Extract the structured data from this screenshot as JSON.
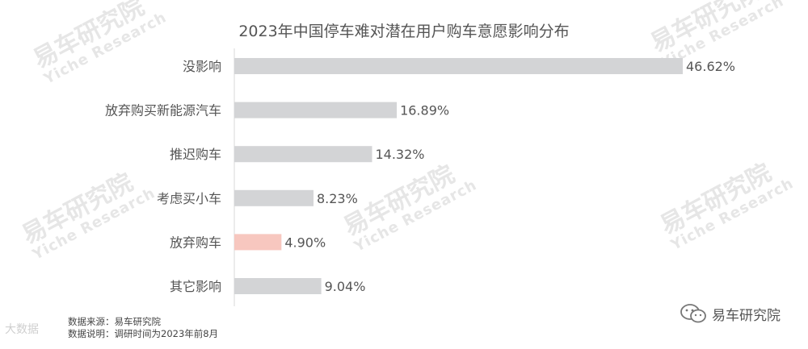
{
  "watermark": {
    "cn": "易车研究院",
    "en": "Yiche Research"
  },
  "chart_data": {
    "type": "bar",
    "orientation": "horizontal",
    "title": "2023年中国停车难对潜在用户购车意愿影响分布",
    "categories": [
      "没影响",
      "放弃购买新能源汽车",
      "推迟购车",
      "考虑买小车",
      "放弃购车",
      "其它影响"
    ],
    "values": [
      46.62,
      16.89,
      14.32,
      8.23,
      4.9,
      9.04
    ],
    "value_labels": [
      "46.62%",
      "16.89%",
      "14.32%",
      "8.23%",
      "4.90%",
      "9.04%"
    ],
    "highlight_index": 4,
    "colors": {
      "bar": "#d3d4d6",
      "highlight": "#f7c7bf",
      "axis": "#d9d9d9",
      "label": "#555555"
    },
    "xlim": [
      0,
      46.62
    ],
    "grid": false,
    "legend": false
  },
  "footer": {
    "source": "数据来源：易车研究院",
    "note": "数据说明：调研时间为2023年前8月"
  },
  "brand": {
    "name": "易车研究院",
    "icon": "wechat-icon"
  },
  "corner": "大数据"
}
